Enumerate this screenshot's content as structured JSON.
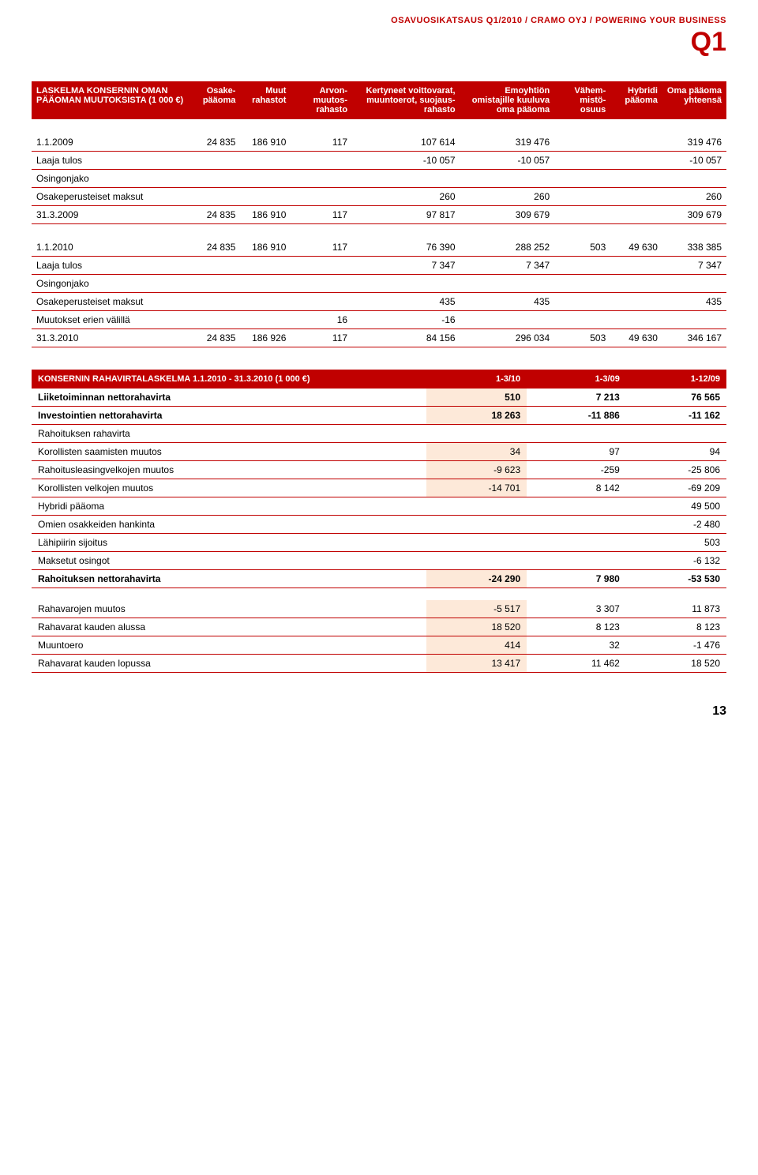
{
  "header": {
    "line": "OSAVUOSIKATSAUS Q1/2010 / CRAMO OYJ / POWERING YOUR BUSINESS",
    "q": "Q1"
  },
  "equity": {
    "title": "LASKELMA KONSERNIN OMAN PÄÄOMAN MUUTOKSISTA (1 000 €)",
    "cols": [
      "Osake-pääoma",
      "Muut rahastot",
      "Arvon-muutos-rahasto",
      "Kertyneet voittovarat, muuntoerot, suojaus-rahasto",
      "Emoyhtiön omistajille kuuluva oma pääoma",
      "Vähem-mistö-osuus",
      "Hybridi pääoma",
      "Oma pääoma yhteensä"
    ],
    "block1": [
      {
        "label": "1.1.2009",
        "c": [
          "24 835",
          "186 910",
          "117",
          "107 614",
          "319 476",
          "",
          "",
          "319 476"
        ]
      },
      {
        "label": "Laaja tulos",
        "c": [
          "",
          "",
          "",
          "-10 057",
          "-10 057",
          "",
          "",
          "-10 057"
        ]
      },
      {
        "label": "Osingonjako",
        "c": [
          "",
          "",
          "",
          "",
          "",
          "",
          "",
          ""
        ]
      },
      {
        "label": "Osakeperusteiset maksut",
        "c": [
          "",
          "",
          "",
          "260",
          "260",
          "",
          "",
          "260"
        ]
      },
      {
        "label": "31.3.2009",
        "c": [
          "24 835",
          "186 910",
          "117",
          "97 817",
          "309 679",
          "",
          "",
          "309 679"
        ]
      }
    ],
    "block2": [
      {
        "label": "1.1.2010",
        "c": [
          "24 835",
          "186 910",
          "117",
          "76 390",
          "288 252",
          "503",
          "49 630",
          "338 385"
        ]
      },
      {
        "label": "Laaja tulos",
        "c": [
          "",
          "",
          "",
          "7 347",
          "7 347",
          "",
          "",
          "7 347"
        ]
      },
      {
        "label": "Osingonjako",
        "c": [
          "",
          "",
          "",
          "",
          "",
          "",
          "",
          ""
        ]
      },
      {
        "label": "Osakeperusteiset maksut",
        "c": [
          "",
          "",
          "",
          "435",
          "435",
          "",
          "",
          "435"
        ]
      },
      {
        "label": "Muutokset erien välillä",
        "c": [
          "",
          "",
          "16",
          "-16",
          "",
          "",
          "",
          ""
        ]
      },
      {
        "label": "31.3.2010",
        "c": [
          "24 835",
          "186 926",
          "117",
          "84 156",
          "296 034",
          "503",
          "49 630",
          "346 167"
        ]
      }
    ]
  },
  "cashflow": {
    "title": "KONSERNIN RAHAVIRTALASKELMA 1.1.2010 - 31.3.2010 (1 000 €)",
    "cols": [
      "1-3/10",
      "1-3/09",
      "1-12/09"
    ],
    "rows": [
      {
        "label": "Liiketoiminnan nettorahavirta",
        "shaded": true,
        "bold": true,
        "c": [
          "510",
          "7 213",
          "76 565"
        ]
      },
      {
        "label": "Investointien nettorahavirta",
        "shaded": true,
        "bold": true,
        "c": [
          "18 263",
          "-11 886",
          "-11 162"
        ]
      },
      {
        "label": "Rahoituksen rahavirta",
        "shaded": false,
        "bold": false,
        "c": [
          "",
          "",
          ""
        ]
      },
      {
        "label": "Korollisten saamisten muutos",
        "shaded": true,
        "bold": false,
        "c": [
          "34",
          "97",
          "94"
        ]
      },
      {
        "label": "Rahoitusleasingvelkojen muutos",
        "shaded": true,
        "bold": false,
        "c": [
          "-9 623",
          "-259",
          "-25 806"
        ]
      },
      {
        "label": "Korollisten velkojen muutos",
        "shaded": true,
        "bold": false,
        "c": [
          "-14 701",
          "8 142",
          "-69 209"
        ]
      },
      {
        "label": "Hybridi pääoma",
        "shaded": false,
        "bold": false,
        "c": [
          "",
          "",
          "49 500"
        ]
      },
      {
        "label": "Omien osakkeiden hankinta",
        "shaded": false,
        "bold": false,
        "c": [
          "",
          "",
          "-2 480"
        ]
      },
      {
        "label": "Lähipiirin sijoitus",
        "shaded": false,
        "bold": false,
        "c": [
          "",
          "",
          "503"
        ]
      },
      {
        "label": "Maksetut osingot",
        "shaded": false,
        "bold": false,
        "c": [
          "",
          "",
          "-6 132"
        ]
      },
      {
        "label": "Rahoituksen nettorahavirta",
        "shaded": true,
        "bold": true,
        "c": [
          "-24 290",
          "7 980",
          "-53 530"
        ]
      }
    ],
    "gapRows": [
      {
        "label": "Rahavarojen muutos",
        "shaded": true,
        "bold": false,
        "c": [
          "-5 517",
          "3 307",
          "11 873"
        ]
      },
      {
        "label": "Rahavarat kauden alussa",
        "shaded": true,
        "bold": false,
        "c": [
          "18 520",
          "8 123",
          "8 123"
        ]
      },
      {
        "label": "Muuntoero",
        "shaded": true,
        "bold": false,
        "c": [
          "414",
          "32",
          "-1 476"
        ]
      },
      {
        "label": "Rahavarat kauden lopussa",
        "shaded": true,
        "bold": false,
        "c": [
          "13 417",
          "11 462",
          "18 520"
        ]
      }
    ]
  },
  "pageNum": "13"
}
